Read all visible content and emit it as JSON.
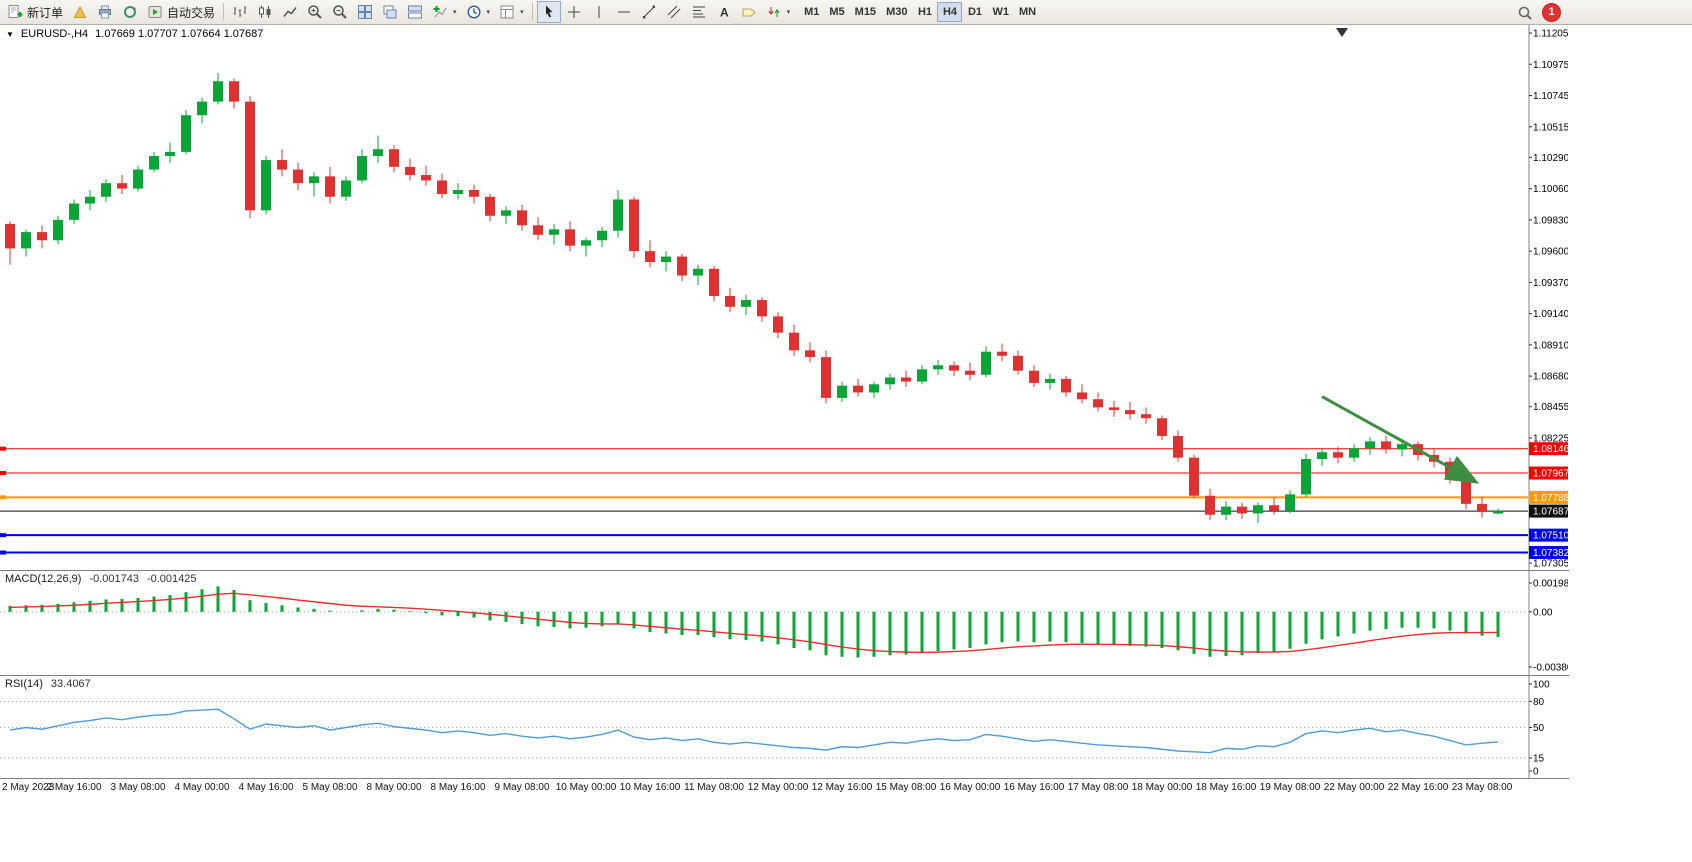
{
  "toolbar": {
    "new_order_label": "新订单",
    "autotrading_label": "自动交易",
    "timeframes": [
      "M1",
      "M5",
      "M15",
      "M30",
      "H1",
      "H4",
      "D1",
      "W1",
      "MN"
    ],
    "active_timeframe": "H4",
    "notification_count": "1",
    "icons": [
      "new-order",
      "new-chart",
      "print",
      "refresh",
      "autotrading",
      "bar-chart",
      "candlestick",
      "line-chart",
      "zoom-in",
      "zoom-out",
      "tile-windows",
      "cascade-windows",
      "arrange-windows",
      "indicators",
      "periods",
      "templates",
      "cursor",
      "crosshair",
      "vertical-line",
      "horizontal-line",
      "trendline",
      "channel",
      "fibonacci",
      "text",
      "label",
      "arrows",
      "search",
      "notification"
    ]
  },
  "chart": {
    "header": {
      "symbol_period": "EURUSD-,H4",
      "ohlc": "1.07669 1.07707 1.07664 1.07687"
    }
  },
  "chart_data": {
    "type": "candlestick+indicators",
    "symbol": "EURUSD-",
    "timeframe": "H4",
    "price_range": [
      1.07305,
      1.11205
    ],
    "price_axis_ticks": [
      "1.11205",
      "1.10975",
      "1.10745",
      "1.10515",
      "1.10290",
      "1.10060",
      "1.09830",
      "1.09600",
      "1.09370",
      "1.09140",
      "1.08910",
      "1.08680",
      "1.08455",
      "1.08225",
      "1.07305"
    ],
    "x_label_every_n_candles": 4,
    "x_labels": [
      "2 May 2023",
      "2 May 16:00",
      "3 May 08:00",
      "4 May 00:00",
      "4 May 16:00",
      "5 May 08:00",
      "8 May 00:00",
      "8 May 16:00",
      "9 May 08:00",
      "10 May 00:00",
      "10 May 16:00",
      "11 May 08:00",
      "12 May 00:00",
      "12 May 16:00",
      "15 May 08:00",
      "16 May 00:00",
      "16 May 16:00",
      "17 May 08:00",
      "18 May 00:00",
      "18 May 16:00",
      "19 May 08:00",
      "22 May 00:00",
      "22 May 16:00",
      "23 May 08:00"
    ],
    "colors": {
      "bull": "#0aa437",
      "bear": "#e03131",
      "macd_hist": "#0aa437",
      "macd_signal": "#e03131",
      "rsi_line": "#4f9bd8",
      "level_red": "#f50000",
      "level_orange": "#ff9900",
      "level_blue": "#0000ee",
      "current_price": "#111111",
      "arrow": "#3e8e41"
    },
    "levels": [
      {
        "price": 1.08146,
        "label": "1.08146",
        "color": "#f50000",
        "width": 1,
        "marker": true,
        "type": "resistance-line"
      },
      {
        "price": 1.07967,
        "label": "1.07967",
        "color": "#f50000",
        "width": 1,
        "marker": true,
        "type": "resistance-line"
      },
      {
        "price": 1.07788,
        "label": "1.07788",
        "color": "#ff9900",
        "width": 2,
        "marker": true,
        "type": "pivot-line"
      },
      {
        "price": 1.07687,
        "label": "1.07687",
        "color": "#111111",
        "width": 1,
        "marker": false,
        "type": "current-price-line"
      },
      {
        "price": 1.0751,
        "label": "1.07510",
        "color": "#0000ee",
        "width": 2,
        "marker": true,
        "type": "support-line"
      },
      {
        "price": 1.07382,
        "label": "1.07382",
        "color": "#0000ee",
        "width": 2,
        "marker": true,
        "type": "support-line"
      }
    ],
    "annotation_arrow": {
      "from_candle": 82,
      "from_price": 1.0853,
      "to_candle": 91.5,
      "to_price": 1.0791,
      "color": "#3e8e41"
    },
    "candles_ohlc": [
      [
        1.098,
        1.0982,
        1.095,
        1.0962
      ],
      [
        1.0962,
        1.0976,
        1.0956,
        1.0974
      ],
      [
        1.0974,
        1.0979,
        1.0962,
        1.0968
      ],
      [
        1.0968,
        1.0986,
        1.0965,
        1.0983
      ],
      [
        1.0983,
        1.0998,
        1.098,
        1.0995
      ],
      [
        1.0995,
        1.1005,
        1.099,
        1.1
      ],
      [
        1.1,
        1.1013,
        1.0996,
        1.101
      ],
      [
        1.101,
        1.1016,
        1.1002,
        1.1006
      ],
      [
        1.1006,
        1.1023,
        1.1004,
        1.102
      ],
      [
        1.102,
        1.1033,
        1.1018,
        1.103
      ],
      [
        1.103,
        1.104,
        1.1025,
        1.1033
      ],
      [
        1.1033,
        1.1064,
        1.1031,
        1.106
      ],
      [
        1.106,
        1.1073,
        1.1054,
        1.107
      ],
      [
        1.107,
        1.1091,
        1.1068,
        1.1085
      ],
      [
        1.1085,
        1.1087,
        1.1065,
        1.107
      ],
      [
        1.107,
        1.1074,
        1.0984,
        1.099
      ],
      [
        1.099,
        1.103,
        1.0987,
        1.1027
      ],
      [
        1.1027,
        1.1035,
        1.1015,
        1.102
      ],
      [
        1.102,
        1.1025,
        1.1005,
        1.101
      ],
      [
        1.101,
        1.1018,
        1.1,
        1.1015
      ],
      [
        1.1015,
        1.1022,
        1.0995,
        1.1
      ],
      [
        1.1,
        1.1015,
        1.0997,
        1.1012
      ],
      [
        1.1012,
        1.1035,
        1.101,
        1.103
      ],
      [
        1.103,
        1.1045,
        1.1025,
        1.1035
      ],
      [
        1.1035,
        1.1038,
        1.1018,
        1.1022
      ],
      [
        1.1022,
        1.1028,
        1.1012,
        1.1016
      ],
      [
        1.1016,
        1.1023,
        1.1008,
        1.1012
      ],
      [
        1.1012,
        1.1017,
        1.0999,
        1.1002
      ],
      [
        1.1002,
        1.101,
        1.0998,
        1.1005
      ],
      [
        1.1005,
        1.1009,
        1.0995,
        1.1
      ],
      [
        1.1,
        1.1002,
        1.0982,
        1.0986
      ],
      [
        1.0986,
        1.0993,
        1.098,
        1.099
      ],
      [
        1.099,
        1.0994,
        1.0975,
        1.0979
      ],
      [
        1.0979,
        1.0985,
        1.0968,
        1.0972
      ],
      [
        1.0972,
        1.098,
        1.0965,
        1.0976
      ],
      [
        1.0976,
        1.0982,
        1.096,
        1.0964
      ],
      [
        1.0964,
        1.097,
        1.0956,
        1.0968
      ],
      [
        1.0968,
        1.0978,
        1.0963,
        1.0975
      ],
      [
        1.0975,
        1.1005,
        1.097,
        1.0998
      ],
      [
        1.0998,
        1.1,
        1.0955,
        1.096
      ],
      [
        1.096,
        1.0968,
        1.0948,
        1.0952
      ],
      [
        1.0952,
        1.096,
        1.0945,
        1.0956
      ],
      [
        1.0956,
        1.0958,
        1.0938,
        1.0942
      ],
      [
        1.0942,
        1.095,
        1.0935,
        1.0947
      ],
      [
        1.0947,
        1.0949,
        1.0923,
        1.0927
      ],
      [
        1.0927,
        1.0933,
        1.0915,
        1.0919
      ],
      [
        1.0919,
        1.0928,
        1.0913,
        1.0924
      ],
      [
        1.0924,
        1.0926,
        1.0908,
        1.0912
      ],
      [
        1.0912,
        1.0915,
        1.0896,
        1.09
      ],
      [
        1.09,
        1.0906,
        1.0883,
        1.0887
      ],
      [
        1.0887,
        1.0893,
        1.0878,
        1.0882
      ],
      [
        1.0882,
        1.0887,
        1.0848,
        1.0852
      ],
      [
        1.0852,
        1.0864,
        1.0849,
        1.0861
      ],
      [
        1.0861,
        1.0866,
        1.0853,
        1.0856
      ],
      [
        1.0856,
        1.0864,
        1.0852,
        1.0862
      ],
      [
        1.0862,
        1.087,
        1.0858,
        1.0867
      ],
      [
        1.0867,
        1.0872,
        1.086,
        1.0864
      ],
      [
        1.0864,
        1.0876,
        1.0862,
        1.0873
      ],
      [
        1.0873,
        1.088,
        1.0869,
        1.0876
      ],
      [
        1.0876,
        1.0879,
        1.0868,
        1.0872
      ],
      [
        1.0872,
        1.0878,
        1.0865,
        1.0869
      ],
      [
        1.0869,
        1.089,
        1.0867,
        1.0886
      ],
      [
        1.0886,
        1.0892,
        1.0879,
        1.0883
      ],
      [
        1.0883,
        1.0887,
        1.0869,
        1.0872
      ],
      [
        1.0872,
        1.0876,
        1.086,
        1.0863
      ],
      [
        1.0863,
        1.087,
        1.0858,
        1.0866
      ],
      [
        1.0866,
        1.0868,
        1.0853,
        1.0856
      ],
      [
        1.0856,
        1.0862,
        1.0848,
        1.0851
      ],
      [
        1.0851,
        1.0856,
        1.0842,
        1.0845
      ],
      [
        1.0845,
        1.085,
        1.0838,
        1.0843
      ],
      [
        1.0843,
        1.0849,
        1.0836,
        1.084
      ],
      [
        1.084,
        1.0845,
        1.0833,
        1.0837
      ],
      [
        1.0837,
        1.0839,
        1.0821,
        1.0824
      ],
      [
        1.0824,
        1.0828,
        1.0805,
        1.0808
      ],
      [
        1.0808,
        1.081,
        1.0778,
        1.078
      ],
      [
        1.078,
        1.0785,
        1.0762,
        1.0766
      ],
      [
        1.0766,
        1.0776,
        1.0762,
        1.0772
      ],
      [
        1.0772,
        1.0775,
        1.0763,
        1.0767
      ],
      [
        1.0767,
        1.0775,
        1.076,
        1.0773
      ],
      [
        1.0773,
        1.0779,
        1.0766,
        1.0769
      ],
      [
        1.0769,
        1.0784,
        1.0767,
        1.0781
      ],
      [
        1.0781,
        1.0811,
        1.0779,
        1.0807
      ],
      [
        1.0807,
        1.0815,
        1.0802,
        1.0812
      ],
      [
        1.0812,
        1.0816,
        1.0804,
        1.0808
      ],
      [
        1.0808,
        1.0818,
        1.0805,
        1.0815
      ],
      [
        1.0815,
        1.0823,
        1.081,
        1.082
      ],
      [
        1.082,
        1.0824,
        1.0811,
        1.0814
      ],
      [
        1.0814,
        1.0822,
        1.0809,
        1.0818
      ],
      [
        1.0818,
        1.082,
        1.0806,
        1.081
      ],
      [
        1.081,
        1.0814,
        1.0801,
        1.0805
      ],
      [
        1.0805,
        1.0808,
        1.0789,
        1.0792
      ],
      [
        1.0792,
        1.0795,
        1.077,
        1.0774
      ],
      [
        1.0774,
        1.0779,
        1.0764,
        1.0768
      ],
      [
        1.07669,
        1.07707,
        1.07664,
        1.07687
      ]
    ],
    "macd": {
      "label": "MACD(12,26,9)",
      "value_main": "-0.001743",
      "value_signal": "-0.001425",
      "axis": [
        "0.001982",
        "0.00",
        "-0.003804"
      ],
      "range": [
        -0.003804,
        0.001982
      ],
      "histogram": [
        0.0004,
        0.00045,
        0.00048,
        0.00055,
        0.00065,
        0.00075,
        0.00085,
        0.00088,
        0.00095,
        0.00105,
        0.00115,
        0.00135,
        0.00155,
        0.00175,
        0.0015,
        0.0008,
        0.0006,
        0.00045,
        0.0003,
        0.0002,
        8e-05,
        0.0,
        0.0001,
        0.0002,
        0.00015,
        5e-05,
        -0.0001,
        -0.00025,
        -0.0003,
        -0.0004,
        -0.0006,
        -0.0007,
        -0.00085,
        -0.001,
        -0.00105,
        -0.00115,
        -0.0011,
        -0.001,
        -0.00085,
        -0.00115,
        -0.0014,
        -0.0015,
        -0.0016,
        -0.0016,
        -0.00175,
        -0.0019,
        -0.00195,
        -0.00205,
        -0.00225,
        -0.0025,
        -0.00265,
        -0.003,
        -0.0031,
        -0.00315,
        -0.0031,
        -0.003,
        -0.00295,
        -0.00285,
        -0.0027,
        -0.0026,
        -0.0025,
        -0.00225,
        -0.0021,
        -0.00205,
        -0.0021,
        -0.00205,
        -0.0021,
        -0.00215,
        -0.00225,
        -0.0023,
        -0.00235,
        -0.0024,
        -0.0025,
        -0.00265,
        -0.0029,
        -0.0031,
        -0.00305,
        -0.003,
        -0.00285,
        -0.00275,
        -0.00255,
        -0.0022,
        -0.0019,
        -0.0017,
        -0.0015,
        -0.0013,
        -0.0012,
        -0.0011,
        -0.0011,
        -0.00115,
        -0.0013,
        -0.0015,
        -0.00165,
        -0.001743
      ],
      "signal": [
        0.0003,
        0.00033,
        0.00036,
        0.0004,
        0.00045,
        0.00051,
        0.00058,
        0.00064,
        0.0007,
        0.00077,
        0.00085,
        0.00095,
        0.00107,
        0.00121,
        0.00127,
        0.00117,
        0.00106,
        0.00094,
        0.00081,
        0.00069,
        0.00057,
        0.00045,
        0.00038,
        0.00034,
        0.0003,
        0.00025,
        0.00018,
        0.0001,
        2e-05,
        -7e-05,
        -0.00017,
        -0.00028,
        -0.00039,
        -0.00051,
        -0.00062,
        -0.00073,
        -0.0008,
        -0.00084,
        -0.00084,
        -0.00091,
        -0.001,
        -0.0011,
        -0.0012,
        -0.00128,
        -0.00138,
        -0.00148,
        -0.00157,
        -0.00167,
        -0.00179,
        -0.00193,
        -0.00207,
        -0.00226,
        -0.00243,
        -0.00257,
        -0.00268,
        -0.00274,
        -0.00278,
        -0.0028,
        -0.00278,
        -0.00274,
        -0.00269,
        -0.0026,
        -0.0025,
        -0.00241,
        -0.00235,
        -0.00229,
        -0.00225,
        -0.00223,
        -0.00224,
        -0.00225,
        -0.00227,
        -0.00229,
        -0.00233,
        -0.0024,
        -0.0025,
        -0.00262,
        -0.00271,
        -0.00276,
        -0.00278,
        -0.00277,
        -0.00273,
        -0.00262,
        -0.00248,
        -0.00232,
        -0.00216,
        -0.00199,
        -0.00183,
        -0.00168,
        -0.00157,
        -0.00148,
        -0.00144,
        -0.00143,
        -0.00143,
        -0.001425
      ]
    },
    "rsi": {
      "label": "RSI(14)",
      "value": "33.4067",
      "axis": [
        "100",
        "80",
        "50",
        "15",
        "0"
      ],
      "levels": [
        80,
        50,
        15
      ],
      "range": [
        0,
        100
      ],
      "values": [
        47,
        50,
        48,
        52,
        56,
        58,
        61,
        59,
        62,
        64,
        65,
        69,
        70,
        71,
        60,
        48,
        54,
        52,
        50,
        52,
        47,
        50,
        53,
        55,
        51,
        49,
        47,
        44,
        46,
        44,
        41,
        43,
        40,
        38,
        40,
        37,
        39,
        42,
        47,
        39,
        36,
        38,
        35,
        37,
        33,
        31,
        33,
        31,
        29,
        27,
        26,
        24,
        28,
        27,
        30,
        33,
        32,
        35,
        37,
        35,
        36,
        42,
        40,
        37,
        34,
        36,
        34,
        32,
        30,
        29,
        28,
        27,
        25,
        23,
        22,
        21,
        26,
        25,
        29,
        28,
        33,
        43,
        46,
        44,
        47,
        49,
        45,
        47,
        43,
        40,
        35,
        30,
        32,
        33.4067
      ]
    }
  }
}
